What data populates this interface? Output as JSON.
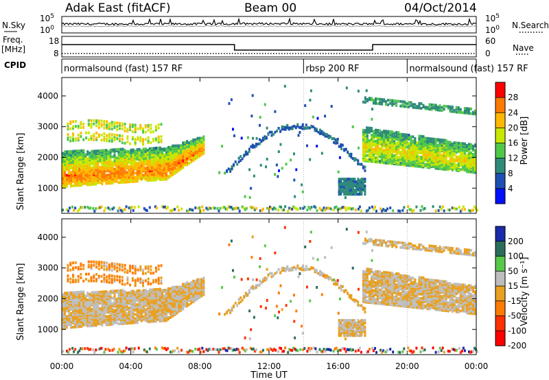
{
  "header": {
    "radar": "Adak East (fitACF)",
    "beam": "Beam 00",
    "date": "04/Oct/2014"
  },
  "left_labels": {
    "nsky": "N.Sky",
    "freq": "Freq.",
    "freq_unit": "[MHz]",
    "cpid": "CPID"
  },
  "right_labels": {
    "nsearch": "N.Search",
    "nave": "Nave"
  },
  "noise_panel": {
    "left_ticks": [
      "10^5",
      "10^0"
    ],
    "right_ticks": [
      "10^5",
      "10^0"
    ]
  },
  "freq_panel": {
    "left_ticks": [
      "18",
      "8"
    ],
    "right_ticks": [
      "60",
      "0"
    ]
  },
  "cpid_panel": {
    "segments": [
      {
        "label": "normalsound (fast) 157 RF",
        "start": "00:00",
        "end": "14:00"
      },
      {
        "label": "rbsp 200 RF",
        "start": "14:00",
        "end": "20:00"
      },
      {
        "label": "normalsound (fast) 157 RF",
        "start": "20:00",
        "end": "24:00"
      }
    ]
  },
  "power_colorbar": {
    "label": "Power [dB]",
    "ticks": [
      "28",
      "24",
      "20",
      "16",
      "12",
      "8",
      "4"
    ],
    "colors": [
      "#ff0000",
      "#ff7a00",
      "#ffb800",
      "#c8e600",
      "#4fc84a",
      "#2f8a7a",
      "#1e4fb4",
      "#0010ff"
    ]
  },
  "velocity_colorbar": {
    "label": "Velocity [m s⁻¹]",
    "ticks": [
      "200",
      "100",
      "50",
      "15",
      "-15",
      "-50",
      "-100",
      "-200"
    ],
    "colors": [
      "#1a2aa8",
      "#2a6e5a",
      "#58c84a",
      "#bdbdbd",
      "#e8a020",
      "#ff7a00",
      "#ff3000",
      "#ff0000"
    ]
  },
  "chart_data": {
    "type": "heatmap",
    "xlabel": "Time UT",
    "ylabel": "Slant Range [km]",
    "x_ticks": [
      "00:00",
      "04:00",
      "08:00",
      "12:00",
      "16:00",
      "20:00",
      "00:00"
    ],
    "y_ticks": [
      "1000",
      "2000",
      "3000",
      "4000"
    ],
    "xlim_hours": [
      0,
      24
    ],
    "ylim_km": [
      180,
      4600
    ],
    "panels": [
      "Power [dB]",
      "Velocity [m s⁻¹]"
    ],
    "features": [
      {
        "name": "main band",
        "t_start": 0.0,
        "t_end": 8.0,
        "range_km": [
          1100,
          2400
        ],
        "power_db": 24,
        "velocity": -15
      },
      {
        "name": "upper band",
        "t_start": 0.5,
        "t_end": 5.5,
        "range_km": [
          2400,
          3200
        ],
        "power_db": 18,
        "velocity": -40
      },
      {
        "name": "arc",
        "t_start": 9.5,
        "t_end": 17.0,
        "range_km": [
          1500,
          3100
        ],
        "power_db": 6,
        "velocity": -15
      },
      {
        "name": "blob",
        "t_start": 16.0,
        "t_end": 17.5,
        "range_km": [
          750,
          1300
        ],
        "power_db": 8,
        "velocity": -15
      },
      {
        "name": "late band",
        "t_start": 17.5,
        "t_end": 24.0,
        "range_km": [
          1400,
          3700
        ],
        "power_db": 18,
        "velocity": -15
      }
    ]
  }
}
